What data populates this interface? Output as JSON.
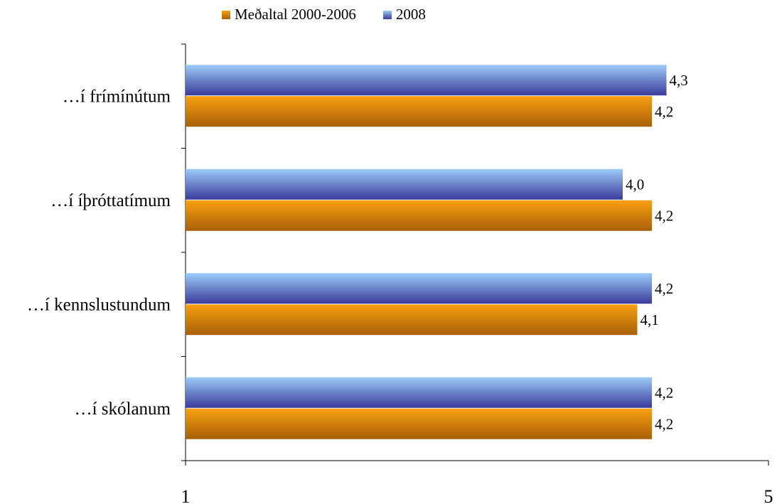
{
  "chart_data": {
    "type": "bar",
    "orientation": "horizontal",
    "categories": [
      "…í frímínútum",
      "…í íþróttatímum",
      "…í kennslustundum",
      "…í skólanum"
    ],
    "series": [
      {
        "name": "Meðaltal 2000-2006",
        "values": [
          4.2,
          4.2,
          4.1,
          4.2
        ],
        "labels": [
          "4,2",
          "4,2",
          "4,1",
          "4,2"
        ]
      },
      {
        "name": "2008",
        "values": [
          4.3,
          4.0,
          4.2,
          4.2
        ],
        "labels": [
          "4,3",
          "4,0",
          "4,2",
          "4,2"
        ]
      }
    ],
    "xlim": [
      1,
      5
    ],
    "ticks": [
      "1",
      "5"
    ],
    "legend_position": "top",
    "grid": false
  },
  "colors": {
    "avg_top": "#f8a010",
    "avg_bottom": "#a85f08",
    "y2008_top": "#9ccbf8",
    "y2008_bottom": "#3a3a9a"
  }
}
